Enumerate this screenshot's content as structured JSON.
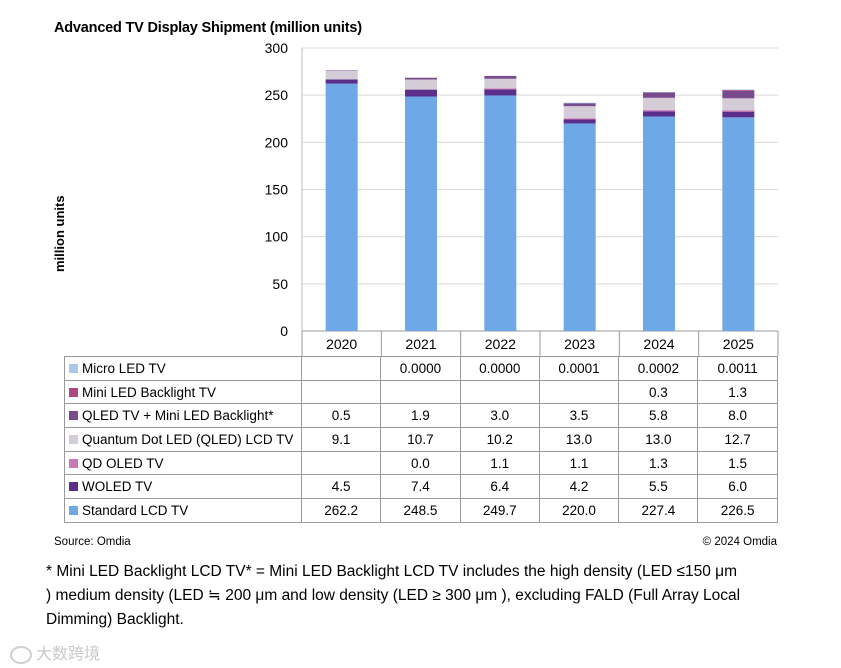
{
  "chart_data": {
    "type": "bar",
    "stacked": true,
    "title": "Advanced TV Display Shipment (million units)",
    "xlabel": "",
    "ylabel": "million  units",
    "ylim": [
      0,
      300
    ],
    "yticks": [
      "0",
      "50",
      "100",
      "150",
      "200",
      "250",
      "300"
    ],
    "categories": [
      "2020",
      "2021",
      "2022",
      "2023",
      "2024",
      "2025"
    ],
    "grid": true,
    "series": [
      {
        "name": "Standard LCD TV",
        "color": "#6fa8e6",
        "values": [
          262.2,
          248.5,
          249.7,
          220.0,
          227.4,
          226.5
        ],
        "labels": [
          "262.2",
          "248.5",
          "249.7",
          "220.0",
          "227.4",
          "226.5"
        ]
      },
      {
        "name": "WOLED TV",
        "color": "#5b2e8c",
        "values": [
          4.5,
          7.4,
          6.4,
          4.2,
          5.5,
          6.0
        ],
        "labels": [
          "4.5",
          "7.4",
          "6.4",
          "4.2",
          "5.5",
          "6.0"
        ]
      },
      {
        "name": "QD OLED TV",
        "color": "#c77ab5",
        "values": [
          0,
          0.0,
          1.1,
          1.1,
          1.3,
          1.5
        ],
        "labels": [
          "",
          "0.0",
          "1.1",
          "1.1",
          "1.3",
          "1.5"
        ]
      },
      {
        "name": "Quantum Dot LED (QLED) LCD TV",
        "color": "#d4ccd6",
        "values": [
          9.1,
          10.7,
          10.2,
          13.0,
          13.0,
          12.7
        ],
        "labels": [
          "9.1",
          "10.7",
          "10.2",
          "13.0",
          "13.0",
          "12.7"
        ]
      },
      {
        "name": "QLED TV + Mini LED Backlight*",
        "color": "#7a4b8c",
        "values": [
          0.5,
          1.9,
          3.0,
          3.5,
          5.8,
          8.0
        ],
        "labels": [
          "0.5",
          "1.9",
          "3.0",
          "3.5",
          "5.8",
          "8.0"
        ]
      },
      {
        "name": "Mini LED Backlight TV",
        "color": "#b0487f",
        "values": [
          0,
          0,
          0,
          0,
          0.3,
          1.3
        ],
        "labels": [
          "",
          "",
          "",
          "",
          "0.3",
          "1.3"
        ]
      },
      {
        "name": "Micro LED TV",
        "color": "#a9c7e6",
        "values": [
          0,
          0.0,
          0.0,
          0.0001,
          0.0002,
          0.0011
        ],
        "labels": [
          "",
          "0.0000",
          "0.0000",
          "0.0001",
          "0.0002",
          "0.0011"
        ]
      }
    ],
    "table_order": [
      "Micro LED TV",
      "Mini LED Backlight TV",
      "QLED TV + Mini LED Backlight*",
      "Quantum Dot LED (QLED) LCD TV",
      "QD OLED TV",
      "WOLED TV",
      "Standard LCD TV"
    ]
  },
  "footer": {
    "source": "Source: Omdia",
    "copyright": "© 2024 Omdia"
  },
  "note": "* Mini LED Backlight LCD TV* = Mini LED Backlight LCD TV includes the high density (LED ≤150 μm ) medium density (LED ≒ 200 μm and low density (LED ≥ 300 μm ), excluding FALD (Full Array Local Dimming) Backlight.",
  "watermark": "大数跨境"
}
